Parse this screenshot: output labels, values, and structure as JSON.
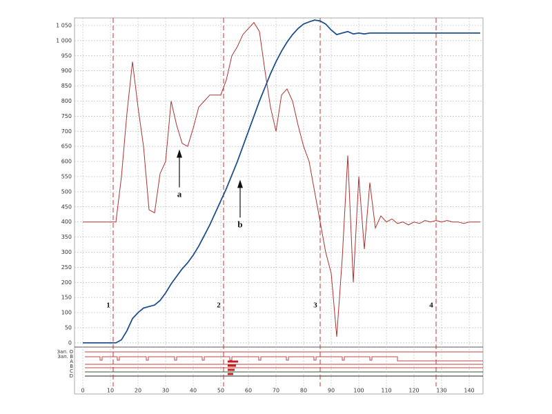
{
  "chart_data": {
    "type": "line",
    "x": [
      0,
      2,
      4,
      6,
      8,
      10,
      12,
      14,
      16,
      18,
      20,
      22,
      24,
      26,
      28,
      30,
      32,
      34,
      36,
      38,
      40,
      42,
      44,
      46,
      48,
      50,
      52,
      54,
      56,
      58,
      60,
      62,
      64,
      66,
      68,
      70,
      72,
      74,
      76,
      78,
      80,
      82,
      84,
      86,
      88,
      90,
      92,
      94,
      96,
      98,
      100,
      102,
      104,
      106,
      108,
      110,
      112,
      114,
      116,
      118,
      120,
      122,
      124,
      126,
      128,
      130,
      132,
      134,
      136,
      138,
      140,
      142,
      144
    ],
    "series": [
      {
        "color": "#b03030",
        "values": [
          400,
          400,
          400,
          400,
          400,
          400,
          400,
          550,
          760,
          930,
          780,
          650,
          440,
          430,
          560,
          600,
          800,
          720,
          660,
          650,
          710,
          780,
          800,
          820,
          820,
          820,
          870,
          950,
          980,
          1020,
          1040,
          1060,
          1030,
          900,
          780,
          700,
          820,
          840,
          800,
          720,
          650,
          600,
          500,
          400,
          300,
          230,
          20,
          280,
          620,
          200,
          550,
          310,
          530,
          380,
          420,
          400,
          410,
          395,
          400,
          390,
          400,
          395,
          405,
          400,
          405,
          400,
          405,
          400,
          400,
          395,
          400,
          400,
          400
        ]
      },
      {
        "color": "#1f4e8c",
        "values": [
          0,
          0,
          0,
          0,
          0,
          0,
          0,
          10,
          40,
          80,
          100,
          115,
          120,
          125,
          140,
          165,
          195,
          220,
          245,
          265,
          290,
          320,
          355,
          390,
          430,
          470,
          510,
          555,
          600,
          650,
          700,
          750,
          800,
          845,
          890,
          930,
          965,
          995,
          1020,
          1040,
          1055,
          1062,
          1068,
          1065,
          1055,
          1035,
          1020,
          1025,
          1030,
          1022,
          1025,
          1022,
          1025,
          1025,
          1025,
          1025,
          1025,
          1025,
          1025,
          1025,
          1025,
          1025,
          1025,
          1025,
          1025,
          1025,
          1025,
          1025,
          1025,
          1025,
          1025,
          1025,
          1025
        ]
      }
    ],
    "xlim": [
      -3,
      145
    ],
    "ylim": [
      -14,
      1075
    ],
    "xticks": [
      0,
      10,
      20,
      30,
      40,
      50,
      60,
      70,
      80,
      90,
      100,
      110,
      120,
      130,
      140
    ],
    "yticks": [
      0,
      50,
      100,
      150,
      200,
      250,
      300,
      350,
      400,
      450,
      500,
      550,
      600,
      650,
      700,
      750,
      800,
      850,
      900,
      950,
      {
        "value": 1000,
        "label": "1 000"
      },
      {
        "value": 1050,
        "label": "1 050"
      }
    ],
    "grid": true,
    "markers": [
      {
        "x": 11,
        "label": "1"
      },
      {
        "x": 51,
        "label": "2"
      },
      {
        "x": 86,
        "label": "3"
      },
      {
        "x": 128,
        "label": "4"
      }
    ],
    "annotations": [
      {
        "text": "a",
        "x": 35,
        "y": 640
      },
      {
        "text": "b",
        "x": 57,
        "y": 540
      }
    ],
    "digital_channels": [
      "Зап. O",
      "Зап. B",
      "A",
      "B",
      "C",
      "D"
    ]
  }
}
